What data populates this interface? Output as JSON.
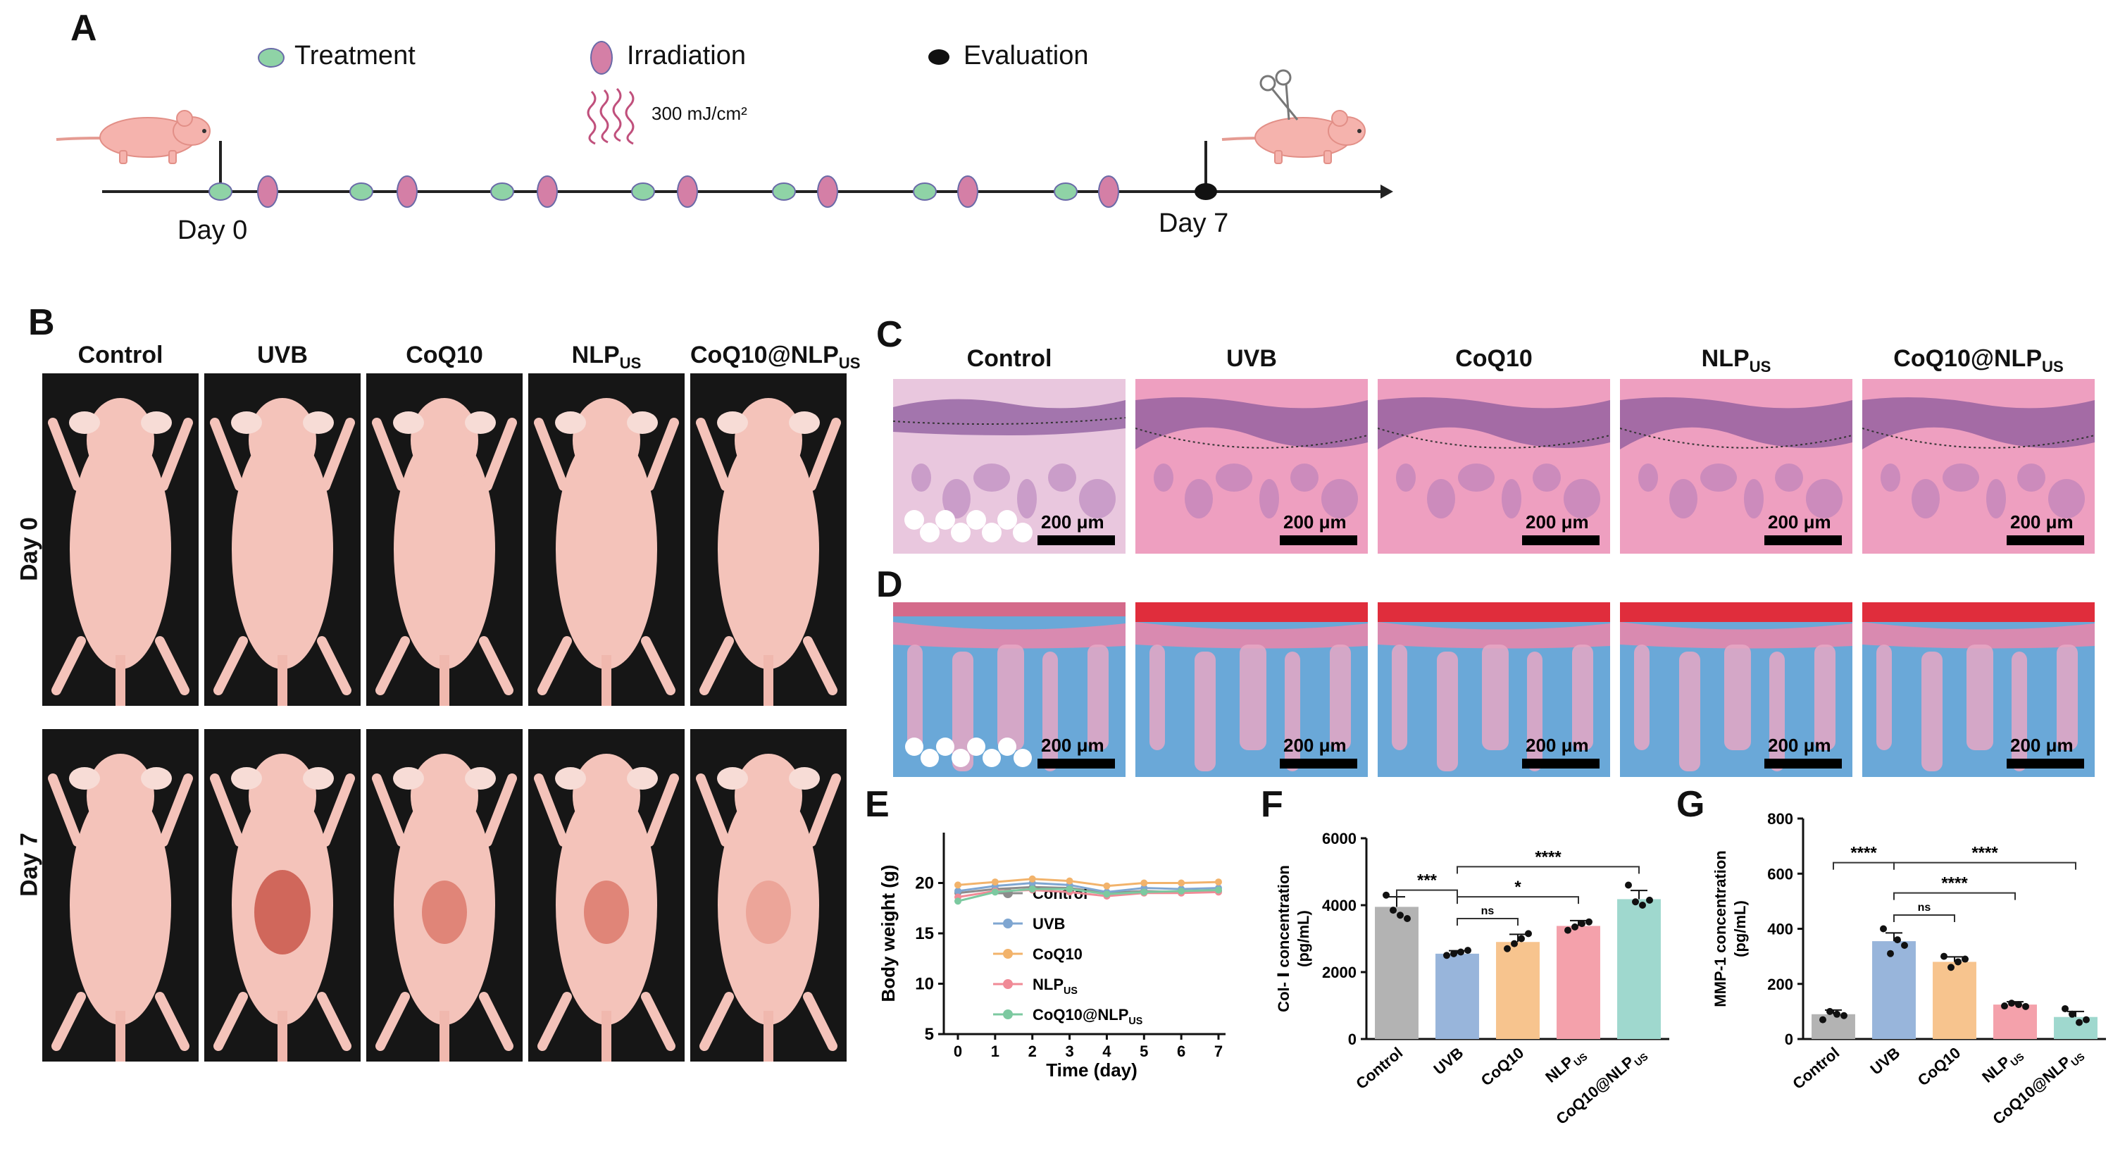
{
  "panels": {
    "A": "A",
    "B": "B",
    "C": "C",
    "D": "D",
    "E": "E",
    "F": "F",
    "G": "G"
  },
  "timeline": {
    "legend": [
      {
        "label": "Treatment",
        "color": "#8fd3a6"
      },
      {
        "label": "Irradiation",
        "color": "#d47fa6"
      },
      {
        "label": "Evaluation",
        "color": "#111111"
      }
    ],
    "dose": "300  mJ/cm²",
    "day_start": "Day 0",
    "day_end": "Day 7"
  },
  "groups": [
    {
      "main": "Control",
      "sub": ""
    },
    {
      "main": "UVB",
      "sub": ""
    },
    {
      "main": "CoQ10",
      "sub": ""
    },
    {
      "main": "NLP",
      "sub": "US"
    },
    {
      "main": "CoQ10@NLP",
      "sub": "US"
    }
  ],
  "photo_rows": [
    "Day 0",
    "Day 7"
  ],
  "scale_bar": "200 μm",
  "chart_data": [
    {
      "panel": "E",
      "type": "line",
      "xlabel": "Time (day)",
      "ylabel": "Body weight (g)",
      "x": [
        0,
        1,
        2,
        3,
        4,
        5,
        6,
        7
      ],
      "xlim": [
        0,
        7
      ],
      "ylim": [
        5,
        25
      ],
      "yticks": [
        5,
        10,
        15,
        20
      ],
      "series": [
        {
          "name": "Control",
          "sub": "",
          "color": "#8c8c8c",
          "values": [
            19.0,
            19.4,
            19.6,
            19.5,
            19.0,
            19.2,
            19.1,
            19.2
          ]
        },
        {
          "name": "UVB",
          "sub": "",
          "color": "#7fa6d1",
          "values": [
            19.2,
            19.7,
            20.0,
            19.8,
            19.1,
            19.5,
            19.4,
            19.5
          ]
        },
        {
          "name": "CoQ10",
          "sub": "",
          "color": "#f2b36b",
          "values": [
            19.8,
            20.1,
            20.4,
            20.2,
            19.7,
            20.0,
            20.0,
            20.1
          ]
        },
        {
          "name": "NLP",
          "sub": "US",
          "color": "#f08a96",
          "values": [
            18.6,
            19.2,
            19.3,
            19.1,
            18.7,
            19.0,
            19.0,
            19.1
          ]
        },
        {
          "name": "CoQ10@NLP",
          "sub": "US",
          "color": "#7cc9a0",
          "values": [
            18.2,
            19.1,
            19.4,
            19.4,
            18.9,
            19.1,
            19.2,
            19.3
          ]
        }
      ]
    },
    {
      "panel": "F",
      "type": "bar",
      "ylabel": "Col- Ⅰ concentration",
      "yunit": "(pg/mL)",
      "categories": [
        {
          "main": "Control",
          "sub": ""
        },
        {
          "main": "UVB",
          "sub": ""
        },
        {
          "main": "CoQ10",
          "sub": ""
        },
        {
          "main": "NLP",
          "sub": "US"
        },
        {
          "main": "CoQ10@NLP",
          "sub": "US"
        }
      ],
      "values": [
        3950,
        2550,
        2900,
        3380,
        4180
      ],
      "errors": [
        300,
        90,
        230,
        160,
        260
      ],
      "points": [
        [
          4300,
          3850,
          3700,
          3600
        ],
        [
          2500,
          2550,
          2600,
          2650
        ],
        [
          2700,
          2850,
          3000,
          3150
        ],
        [
          3250,
          3350,
          3450,
          3500
        ],
        [
          4600,
          4100,
          4000,
          4150
        ]
      ],
      "colors": [
        "#b3b3b3",
        "#98b5db",
        "#f7c48e",
        "#f4a1ab",
        "#9fd8ce"
      ],
      "ylim": [
        0,
        6000
      ],
      "yticks": [
        0,
        2000,
        4000,
        6000
      ],
      "comparisons": [
        {
          "from": 0,
          "to": 1,
          "label": "***",
          "y": 4450
        },
        {
          "from": 1,
          "to": 4,
          "label": "****",
          "y": 5150
        },
        {
          "from": 1,
          "to": 3,
          "label": "*",
          "y": 4250
        },
        {
          "from": 1,
          "to": 2,
          "label": "ns",
          "y": 3600
        }
      ]
    },
    {
      "panel": "G",
      "type": "bar",
      "ylabel": "MMP-1 concentration",
      "yunit": "(pg/mL)",
      "categories": [
        {
          "main": "Control",
          "sub": ""
        },
        {
          "main": "UVB",
          "sub": ""
        },
        {
          "main": "CoQ10",
          "sub": ""
        },
        {
          "main": "NLP",
          "sub": "US"
        },
        {
          "main": "CoQ10@NLP",
          "sub": "US"
        }
      ],
      "values": [
        90,
        355,
        280,
        125,
        80
      ],
      "errors": [
        15,
        30,
        18,
        10,
        20
      ],
      "points": [
        [
          70,
          100,
          90,
          85
        ],
        [
          400,
          310,
          360,
          340
        ],
        [
          300,
          260,
          280,
          290
        ],
        [
          120,
          130,
          125,
          118
        ],
        [
          110,
          90,
          60,
          70
        ]
      ],
      "colors": [
        "#b3b3b3",
        "#98b5db",
        "#f7c48e",
        "#f4a1ab",
        "#9fd8ce"
      ],
      "ylim": [
        0,
        800
      ],
      "yticks": [
        0,
        200,
        400,
        600,
        800
      ],
      "comparisons": [
        {
          "from": 0,
          "to": 1,
          "label": "****",
          "y": 640
        },
        {
          "from": 1,
          "to": 4,
          "label": "****",
          "y": 640
        },
        {
          "from": 1,
          "to": 3,
          "label": "****",
          "y": 530
        },
        {
          "from": 1,
          "to": 2,
          "label": "ns",
          "y": 450
        }
      ]
    }
  ]
}
